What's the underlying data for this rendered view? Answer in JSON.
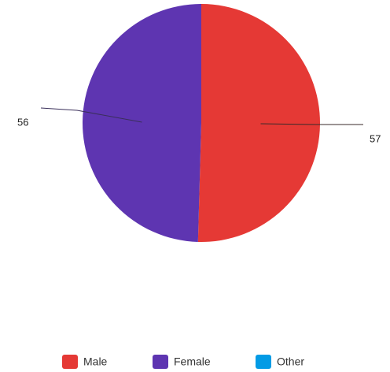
{
  "chart_data": {
    "type": "pie",
    "title": "",
    "slices": [
      {
        "label": "Male",
        "value": 57,
        "color": "#e53935"
      },
      {
        "label": "Female",
        "value": 56,
        "color": "#5e35b1"
      },
      {
        "label": "Other",
        "value": 0,
        "color": "#039be5"
      }
    ],
    "data_labels": [
      "57",
      "56"
    ],
    "legend": {
      "placement": "bottom",
      "items": [
        {
          "label": "Male",
          "color": "#e53935"
        },
        {
          "label": "Female",
          "color": "#5e35b1"
        },
        {
          "label": "Other",
          "color": "#039be5"
        }
      ]
    }
  }
}
